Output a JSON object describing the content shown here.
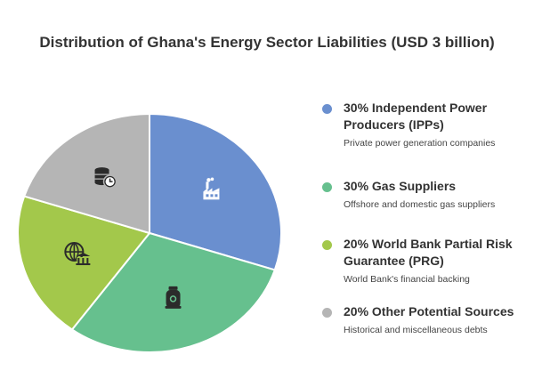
{
  "chart_data": {
    "type": "pie",
    "title": "Distribution of Ghana's Energy Sector Liabilities (USD 3 billion)",
    "categories": [
      "30% Independent Power Producers (IPPs)",
      "30% Gas Suppliers",
      "20% World Bank Partial Risk Guarantee (PRG)",
      "20% Other Potential Sources"
    ],
    "values": [
      30,
      30,
      20,
      20
    ],
    "colors": [
      "#6a8fcf",
      "#66c08e",
      "#a3c84b",
      "#b5b5b5"
    ],
    "icons": [
      "factory-icon",
      "gas-cylinder-icon",
      "bank-globe-icon",
      "money-clock-icon"
    ],
    "legend_placement": "right"
  },
  "legend": [
    {
      "label": "30% Independent Power Producers (IPPs)",
      "desc": "Private power generation companies",
      "color": "#6a8fcf"
    },
    {
      "label": "30% Gas Suppliers",
      "desc": "Offshore and domestic gas suppliers",
      "color": "#66c08e"
    },
    {
      "label": "20% World Bank Partial Risk Guarantee (PRG)",
      "desc": "World Bank's financial backing",
      "color": "#a3c84b"
    },
    {
      "label": "20% Other Potential Sources",
      "desc": "Historical and miscellaneous debts",
      "color": "#b5b5b5"
    }
  ]
}
